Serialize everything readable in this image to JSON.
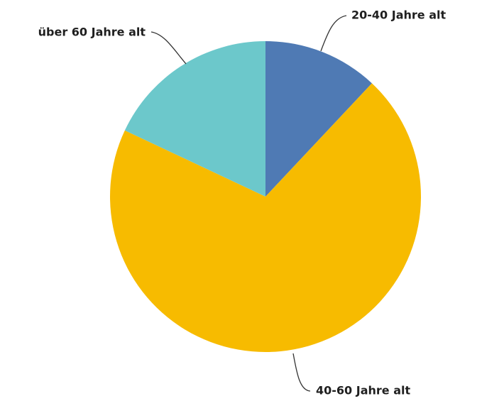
{
  "chart_data": {
    "type": "pie",
    "categories": [
      "20-40 Jahre alt",
      "40-60 Jahre alt",
      "über 60 Jahre alt"
    ],
    "values": [
      12,
      70,
      18
    ],
    "colors": [
      "#4f7ab4",
      "#f7bb00",
      "#6cc8cb"
    ]
  }
}
